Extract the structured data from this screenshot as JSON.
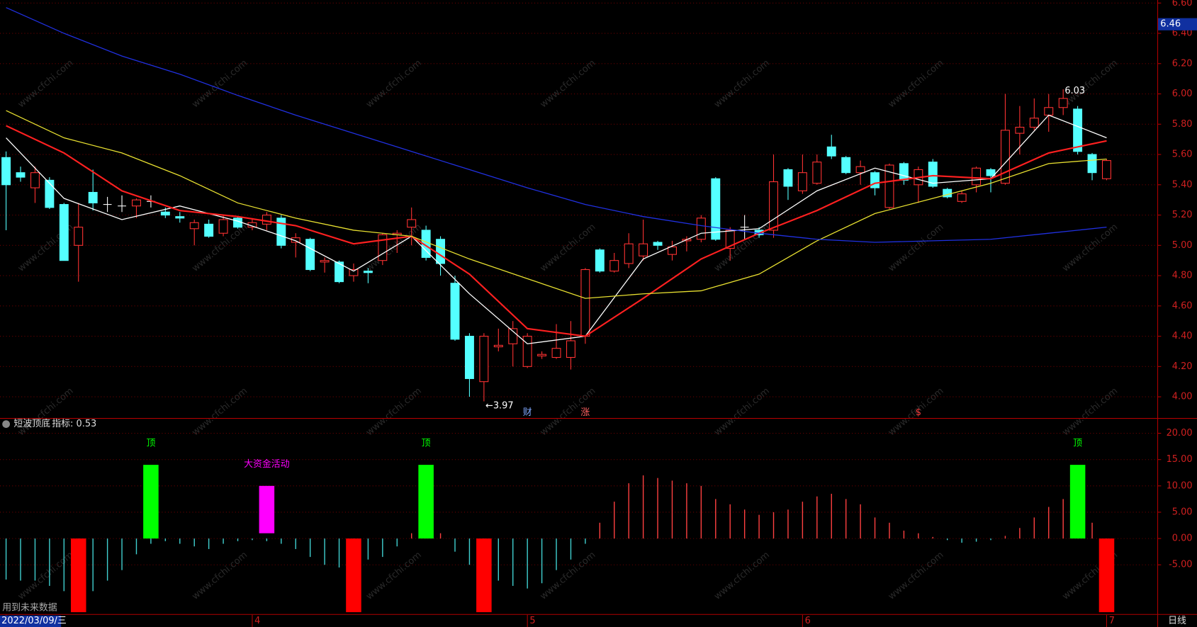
{
  "chart_data": [
    {
      "type": "candlestick",
      "open": [
        5.58,
        5.48,
        5.38,
        5.43,
        5.27,
        5.0,
        5.35,
        5.27,
        5.26,
        5.26,
        5.29,
        5.22,
        5.19,
        5.11,
        5.14,
        5.08,
        5.18,
        5.12,
        5.14,
        5.18,
        5.02,
        5.04,
        4.89,
        4.89,
        4.8,
        4.83,
        4.9,
        5.07,
        5.12,
        5.1,
        5.04,
        4.75,
        4.4,
        4.1,
        4.33,
        4.35,
        4.2,
        4.27,
        4.26,
        4.26,
        4.4,
        4.97,
        4.83,
        4.88,
        4.93,
        5.02,
        4.94,
        5.03,
        5.04,
        5.44,
        4.98,
        5.12,
        5.1,
        5.1,
        5.5,
        5.36,
        5.41,
        5.65,
        5.58,
        5.48,
        5.48,
        5.25,
        5.54,
        5.4,
        5.55,
        5.37,
        5.29,
        5.4,
        5.5,
        5.41,
        5.74,
        5.78,
        5.86,
        5.91,
        5.9,
        5.6,
        5.44
      ],
      "high": [
        5.62,
        5.52,
        5.52,
        5.45,
        5.28,
        5.28,
        5.5,
        5.32,
        5.33,
        5.31,
        5.33,
        5.25,
        5.22,
        5.17,
        5.17,
        5.2,
        5.19,
        5.18,
        5.22,
        5.2,
        5.08,
        5.05,
        4.92,
        4.9,
        4.88,
        4.85,
        5.08,
        5.1,
        5.25,
        5.13,
        5.06,
        4.8,
        4.42,
        4.42,
        4.45,
        4.5,
        4.42,
        4.3,
        4.48,
        4.5,
        4.85,
        4.98,
        4.95,
        5.08,
        5.17,
        5.03,
        5.03,
        5.06,
        5.2,
        5.45,
        5.12,
        5.2,
        5.12,
        5.6,
        5.51,
        5.6,
        5.6,
        5.73,
        5.59,
        5.56,
        5.49,
        5.54,
        5.55,
        5.52,
        5.57,
        5.38,
        5.36,
        5.52,
        5.51,
        6.0,
        5.92,
        5.97,
        6.0,
        6.03,
        5.92,
        5.61,
        5.57
      ],
      "low": [
        5.1,
        5.42,
        5.28,
        5.24,
        4.9,
        4.76,
        5.23,
        5.22,
        5.22,
        5.18,
        5.25,
        5.18,
        5.15,
        5.0,
        5.05,
        5.06,
        5.11,
        5.1,
        5.1,
        4.98,
        4.92,
        4.83,
        4.82,
        4.75,
        4.76,
        4.75,
        4.87,
        4.95,
        5.0,
        4.9,
        4.8,
        4.37,
        4.0,
        3.97,
        4.3,
        4.2,
        4.19,
        4.25,
        4.25,
        4.18,
        4.35,
        4.82,
        4.82,
        4.85,
        4.9,
        4.97,
        4.9,
        4.96,
        5.02,
        5.03,
        4.9,
        5.04,
        5.05,
        5.05,
        5.3,
        5.34,
        5.4,
        5.57,
        5.47,
        5.4,
        5.33,
        5.24,
        5.4,
        5.28,
        5.38,
        5.31,
        5.28,
        5.35,
        5.35,
        5.4,
        5.6,
        5.76,
        5.75,
        5.86,
        5.6,
        5.43,
        5.43
      ],
      "close": [
        5.4,
        5.45,
        5.48,
        5.25,
        4.9,
        5.12,
        5.28,
        5.27,
        5.26,
        5.3,
        5.29,
        5.2,
        5.18,
        5.15,
        5.06,
        5.17,
        5.12,
        5.15,
        5.2,
        5.0,
        5.05,
        4.84,
        4.9,
        4.76,
        4.84,
        4.82,
        5.07,
        5.08,
        5.17,
        4.92,
        4.88,
        4.38,
        4.12,
        4.4,
        4.34,
        4.45,
        4.4,
        4.28,
        4.32,
        4.37,
        4.84,
        4.83,
        4.9,
        5.01,
        5.01,
        5.0,
        4.99,
        5.04,
        5.18,
        5.04,
        5.1,
        5.12,
        5.07,
        5.42,
        5.39,
        5.48,
        5.55,
        5.59,
        5.48,
        5.52,
        5.38,
        5.53,
        5.43,
        5.5,
        5.39,
        5.32,
        5.34,
        5.51,
        5.46,
        5.76,
        5.78,
        5.84,
        5.91,
        5.97,
        5.62,
        5.48,
        5.56
      ],
      "up_color": "#ff3232",
      "down_color": "#54ffff",
      "doji_color": "#ffffff",
      "xlim": [
        -0.42,
        79.5
      ],
      "xticks": [
        {
          "value": 0,
          "label": "2022/03/09/三"
        },
        {
          "value": 17,
          "label": "4"
        },
        {
          "value": 36,
          "label": "5"
        },
        {
          "value": 55,
          "label": "6"
        },
        {
          "value": 76,
          "label": "7"
        }
      ],
      "ylim": [
        3.86,
        6.62
      ],
      "yticks": [
        {
          "value": 4,
          "label": "4.00"
        },
        {
          "value": 4.2,
          "label": "4.20"
        },
        {
          "value": 4.4,
          "label": "4.40"
        },
        {
          "value": 4.6,
          "label": "4.60"
        },
        {
          "value": 4.8,
          "label": "4.80"
        },
        {
          "value": 5,
          "label": "5.00"
        },
        {
          "value": 5.2,
          "label": "5.20"
        },
        {
          "value": 5.4,
          "label": "5.40"
        },
        {
          "value": 5.6,
          "label": "5.60"
        },
        {
          "value": 5.8,
          "label": "5.80"
        },
        {
          "value": 6,
          "label": "6.00"
        },
        {
          "value": 6.2,
          "label": "6.20"
        },
        {
          "value": 6.4,
          "label": "6.40"
        },
        {
          "value": 6.6,
          "label": "6.60"
        }
      ],
      "grid": true,
      "series": [
        {
          "color": "#ffffff",
          "x": [
            0,
            4,
            8,
            12,
            16,
            20,
            24,
            28,
            32,
            36,
            40,
            44,
            48,
            52,
            56,
            60,
            64,
            68,
            72,
            76
          ],
          "values": [
            5.71,
            5.31,
            5.17,
            5.26,
            5.16,
            5.03,
            4.83,
            5.06,
            4.68,
            4.35,
            4.4,
            4.91,
            5.08,
            5.11,
            5.36,
            5.51,
            5.41,
            5.44,
            5.86,
            5.71
          ]
        },
        {
          "color": "#ff2020",
          "x": [
            0,
            4,
            8,
            12,
            16,
            20,
            24,
            28,
            32,
            36,
            40,
            44,
            48,
            52,
            56,
            60,
            64,
            68,
            72,
            76
          ],
          "values": [
            5.79,
            5.61,
            5.36,
            5.23,
            5.19,
            5.13,
            5.01,
            5.06,
            4.81,
            4.45,
            4.4,
            4.65,
            4.91,
            5.08,
            5.23,
            5.41,
            5.46,
            5.44,
            5.61,
            5.69
          ]
        },
        {
          "color": "#e8e030",
          "x": [
            0,
            4,
            8,
            12,
            16,
            20,
            24,
            28,
            32,
            36,
            40,
            44,
            48,
            52,
            56,
            60,
            64,
            68,
            72,
            76
          ],
          "values": [
            5.89,
            5.71,
            5.61,
            5.46,
            5.28,
            5.18,
            5.1,
            5.06,
            4.91,
            4.78,
            4.65,
            4.68,
            4.7,
            4.81,
            5.03,
            5.21,
            5.31,
            5.41,
            5.54,
            5.57
          ]
        },
        {
          "color": "#2030e0",
          "x": [
            0,
            4,
            8,
            12,
            16,
            20,
            24,
            28,
            32,
            36,
            40,
            44,
            48,
            52,
            56,
            60,
            64,
            68,
            72,
            76
          ],
          "values": [
            6.57,
            6.4,
            6.25,
            6.13,
            5.99,
            5.86,
            5.74,
            5.62,
            5.5,
            5.38,
            5.27,
            5.19,
            5.13,
            5.08,
            5.04,
            5.02,
            5.03,
            5.04,
            5.08,
            5.12
          ]
        }
      ],
      "annotations": [
        {
          "index": 33,
          "value": 3.97,
          "label": "←3.97"
        },
        {
          "index": 73,
          "value": 6.03,
          "label": "6.03"
        }
      ],
      "current": {
        "value": 6.46,
        "label": "6.46"
      },
      "markers": [
        {
          "index": 36,
          "label": "财",
          "color": "#7fa8ff"
        },
        {
          "index": 40,
          "label": "涨",
          "color": "#ff6060"
        },
        {
          "index": 63,
          "label": "$",
          "color": "#ff4040"
        }
      ],
      "watermark": "www.cfchi.com",
      "note": "用到未来数据",
      "period": "日线"
    },
    {
      "type": "bar",
      "title": "短波顶底",
      "subtitle": "指标: 0.53",
      "values": [
        -7.8,
        -8,
        -8,
        -9,
        -10,
        -10,
        -10,
        -8,
        -6,
        -3,
        -1,
        -0.5,
        -1,
        -1.5,
        -2,
        -1,
        -0.5,
        -0.3,
        -0.5,
        -1,
        -2,
        -3.5,
        -5,
        -5.5,
        -6,
        -4,
        -3.5,
        -1.5,
        1,
        1.5,
        1,
        -2.5,
        -5,
        -7,
        -8,
        -9,
        -9.5,
        -8.5,
        -6,
        -4,
        -1,
        3,
        7,
        10.5,
        12,
        11.5,
        11,
        10.5,
        10,
        7.5,
        6.5,
        5.5,
        4.5,
        5,
        5.5,
        7,
        8,
        8.5,
        7.5,
        6.5,
        4,
        3,
        1.5,
        1,
        0.3,
        -0.3,
        -0.8,
        -0.6,
        -0.3,
        0.5,
        2,
        4,
        6,
        7.5,
        6,
        3,
        -1
      ],
      "pos_color": "#ff4040",
      "neg_color": "#40d0d0",
      "ylim": [
        -14.35,
        22.9
      ],
      "yticks": [
        {
          "value": 20,
          "label": "20.00"
        },
        {
          "value": 15,
          "label": "15.00"
        },
        {
          "value": 10,
          "label": "10.00"
        },
        {
          "value": 5,
          "label": "5.00"
        },
        {
          "value": 0,
          "label": "0.00"
        },
        {
          "value": -5,
          "label": "-5.00"
        }
      ],
      "signals": [
        {
          "index": 5,
          "from": 0,
          "to": -14,
          "color": "#ff0000"
        },
        {
          "index": 24,
          "from": 0,
          "to": -14,
          "color": "#ff0000"
        },
        {
          "index": 33,
          "from": 0,
          "to": -14,
          "color": "#ff0000"
        },
        {
          "index": 76,
          "from": 0,
          "to": -14,
          "color": "#ff0000"
        },
        {
          "index": 10,
          "from": 0,
          "to": 14,
          "color": "#00ff00",
          "label": "顶"
        },
        {
          "index": 29,
          "from": 0,
          "to": 14,
          "color": "#00ff00",
          "label": "顶"
        },
        {
          "index": 74,
          "from": 0,
          "to": 14,
          "color": "#00ff00",
          "label": "顶"
        },
        {
          "index": 18,
          "from": 1,
          "to": 10,
          "color": "#ff00ff",
          "label": "大资金活动"
        }
      ]
    }
  ]
}
